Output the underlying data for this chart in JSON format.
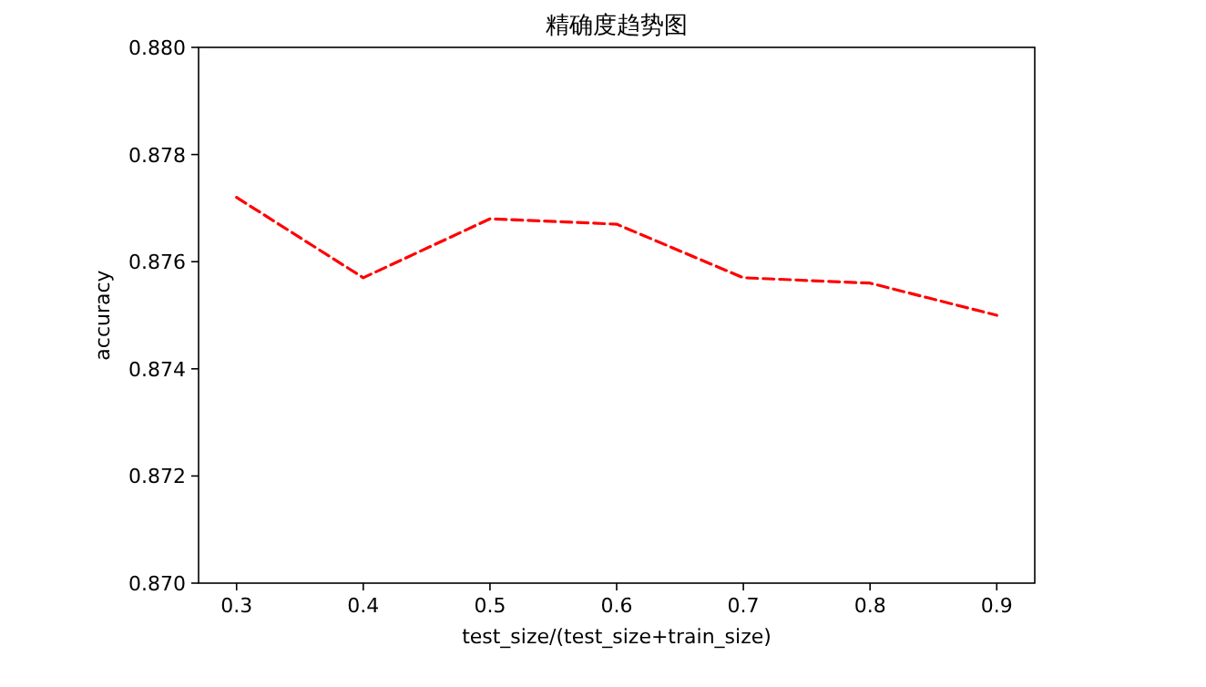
{
  "chart_data": {
    "type": "line",
    "title": "精确度趋势图",
    "xlabel": "test_size/(test_size+train_size)",
    "ylabel": "accuracy",
    "x": [
      0.3,
      0.4,
      0.5,
      0.6,
      0.7,
      0.8,
      0.9
    ],
    "series": [
      {
        "color": "#ff0000",
        "values": [
          0.8772,
          0.8757,
          0.8768,
          0.8767,
          0.8757,
          0.8756,
          0.875
        ]
      }
    ],
    "line_style": "dashed",
    "xlim": [
      0.27,
      0.93
    ],
    "ylim": [
      0.87,
      0.88
    ],
    "xticks": [
      0.3,
      0.4,
      0.5,
      0.6,
      0.7,
      0.8,
      0.9
    ],
    "yticks": [
      {
        "value": 0.87,
        "label": "0.870"
      },
      0.872,
      0.874,
      0.876,
      0.878,
      {
        "value": 0.88,
        "label": "0.880"
      }
    ]
  }
}
